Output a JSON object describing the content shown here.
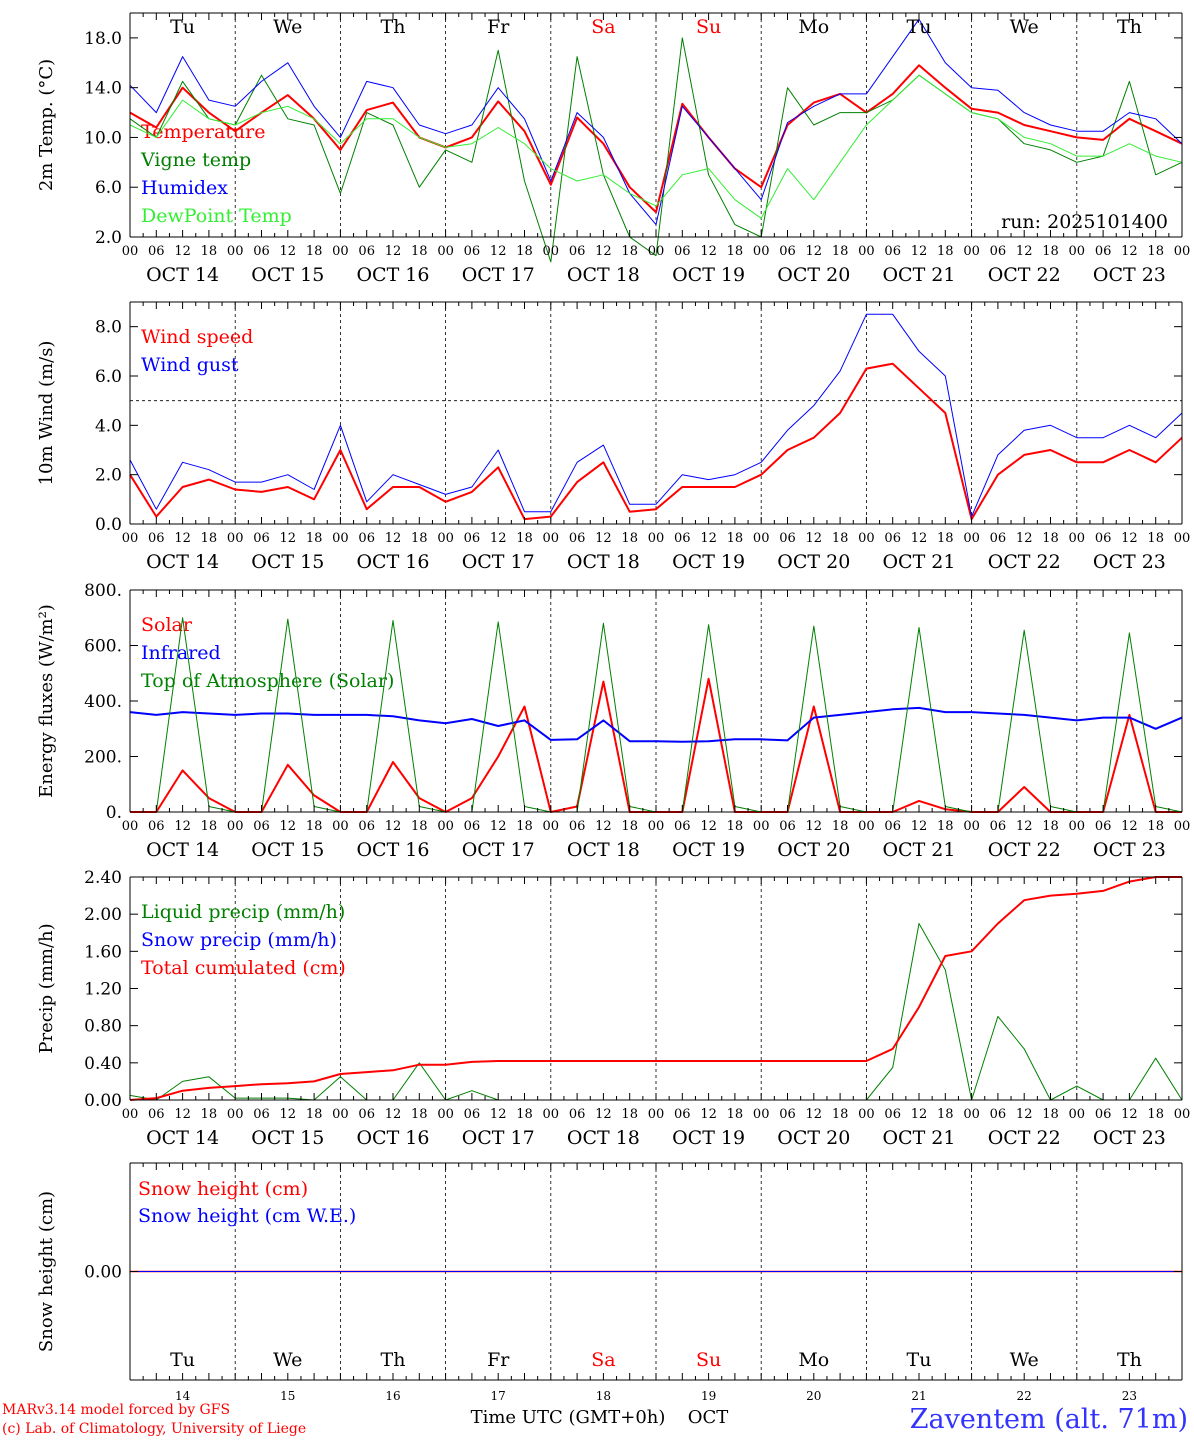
{
  "station": "Zaventem (alt. 71m)",
  "run_label": "run: 2025101400",
  "credits": {
    "model": "MARv3.14 model forced by GFS",
    "lab": "(c) Lab. of Climatology, University of Liege"
  },
  "xlabel": "Time UTC (GMT+0h)",
  "month": "OCT",
  "days": [
    {
      "abbr": "Tu",
      "date": "OCT 14",
      "num": "14",
      "weekend": false
    },
    {
      "abbr": "We",
      "date": "OCT 15",
      "num": "15",
      "weekend": false
    },
    {
      "abbr": "Th",
      "date": "OCT 16",
      "num": "16",
      "weekend": false
    },
    {
      "abbr": "Fr",
      "date": "OCT 17",
      "num": "17",
      "weekend": false
    },
    {
      "abbr": "Sa",
      "date": "OCT 18",
      "num": "18",
      "weekend": true
    },
    {
      "abbr": "Su",
      "date": "OCT 19",
      "num": "19",
      "weekend": true
    },
    {
      "abbr": "Mo",
      "date": "OCT 20",
      "num": "20",
      "weekend": false
    },
    {
      "abbr": "Tu",
      "date": "OCT 21",
      "num": "21",
      "weekend": false
    },
    {
      "abbr": "We",
      "date": "OCT 22",
      "num": "22",
      "weekend": false
    },
    {
      "abbr": "Th",
      "date": "OCT 23",
      "num": "23",
      "weekend": false
    }
  ],
  "hour_ticks": [
    "00",
    "06",
    "12",
    "18"
  ],
  "end_tick": "00",
  "colors": {
    "red": "#ff0000",
    "green": "#008000",
    "blue": "#0000ff",
    "lightgreen": "#33ee33",
    "weekend": "#ff0000"
  },
  "chart_data": [
    {
      "id": "temp",
      "type": "line",
      "ylabel": "2m Temp. (°C)",
      "ylim": [
        2,
        20
      ],
      "yticks": [
        2,
        6,
        10,
        14,
        18
      ],
      "ytick_labels": [
        "2.0",
        "6.0",
        "10.0",
        "14.0",
        "18.0"
      ],
      "x_unit": "hours since 2025-10-14 00 UTC",
      "x": [
        0,
        6,
        12,
        18,
        24,
        30,
        36,
        42,
        48,
        54,
        60,
        66,
        72,
        78,
        84,
        90,
        96,
        102,
        108,
        114,
        120,
        126,
        132,
        138,
        144,
        150,
        156,
        162,
        168,
        174,
        180,
        186,
        192,
        198,
        204,
        210,
        216,
        222,
        228,
        234,
        240
      ],
      "series": [
        {
          "name": "Temperature",
          "color": "red",
          "width": 2,
          "values": [
            12.0,
            10.8,
            14.0,
            12.0,
            10.5,
            12.0,
            13.4,
            11.5,
            9.0,
            12.2,
            12.8,
            10.0,
            9.2,
            10.0,
            12.9,
            10.5,
            6.2,
            11.6,
            9.5,
            6.0,
            4.0,
            12.7,
            10.0,
            7.5,
            6.0,
            11.0,
            12.8,
            13.5,
            12.0,
            13.5,
            15.8,
            14.0,
            12.3,
            12.0,
            11.0,
            10.5,
            10.0,
            9.8,
            11.5,
            10.5,
            9.5
          ]
        },
        {
          "name": "Vigne temp",
          "color": "green",
          "width": 1,
          "values": [
            11.5,
            10.0,
            14.5,
            11.5,
            11.0,
            15.0,
            11.5,
            11.0,
            5.5,
            12.0,
            11.0,
            6.0,
            9.0,
            8.0,
            17.0,
            6.5,
            0.0,
            16.5,
            7.0,
            2.0,
            0.5,
            18.0,
            7.0,
            3.0,
            2.0,
            14.0,
            11.0,
            12.0,
            12.0,
            13.0,
            15.0,
            13.5,
            12.0,
            11.5,
            9.5,
            9.0,
            8.0,
            8.5,
            14.5,
            7.0,
            8.0
          ]
        },
        {
          "name": "Humidex",
          "color": "blue",
          "width": 1,
          "values": [
            14.2,
            12.0,
            16.5,
            13.0,
            12.5,
            14.5,
            16.0,
            12.5,
            10.0,
            14.5,
            14.0,
            11.0,
            10.3,
            11.0,
            14.0,
            11.5,
            6.5,
            12.0,
            10.0,
            5.5,
            3.0,
            12.5,
            10.0,
            7.5,
            5.0,
            11.2,
            12.5,
            13.5,
            13.5,
            16.5,
            19.5,
            16.0,
            14.0,
            13.8,
            12.0,
            11.0,
            10.5,
            10.5,
            12.0,
            11.5,
            9.5
          ]
        },
        {
          "name": "DewPoint Temp",
          "color": "lightgreen",
          "width": 1,
          "values": [
            11.0,
            10.0,
            13.0,
            11.5,
            11.0,
            12.0,
            12.5,
            11.5,
            9.5,
            11.5,
            11.5,
            10.0,
            9.2,
            9.5,
            10.8,
            9.5,
            7.5,
            6.5,
            7.0,
            5.5,
            4.5,
            7.0,
            7.5,
            5.0,
            3.5,
            7.5,
            5.0,
            8.0,
            11.0,
            13.0,
            15.0,
            13.5,
            12.0,
            11.5,
            10.0,
            9.5,
            8.5,
            8.5,
            9.5,
            8.5,
            8.0
          ]
        }
      ]
    },
    {
      "id": "wind",
      "type": "line",
      "ylabel": "10m Wind (m/s)",
      "ylim": [
        0,
        9
      ],
      "yticks": [
        0,
        2,
        4,
        6,
        8
      ],
      "ytick_labels": [
        "0.0",
        "2.0",
        "4.0",
        "6.0",
        "8.0"
      ],
      "ref_line": 5,
      "x": [
        0,
        6,
        12,
        18,
        24,
        30,
        36,
        42,
        48,
        54,
        60,
        66,
        72,
        78,
        84,
        90,
        96,
        102,
        108,
        114,
        120,
        126,
        132,
        138,
        144,
        150,
        156,
        162,
        168,
        174,
        180,
        186,
        192,
        198,
        204,
        210,
        216,
        222,
        228,
        234,
        240
      ],
      "series": [
        {
          "name": "Wind speed",
          "color": "red",
          "width": 2,
          "values": [
            2.0,
            0.3,
            1.5,
            1.8,
            1.4,
            1.3,
            1.5,
            1.0,
            3.0,
            0.6,
            1.5,
            1.5,
            0.9,
            1.3,
            2.3,
            0.2,
            0.3,
            1.7,
            2.5,
            0.5,
            0.6,
            1.5,
            1.5,
            1.5,
            2.0,
            3.0,
            3.5,
            4.5,
            6.3,
            6.5,
            5.5,
            4.5,
            0.2,
            2.0,
            2.8,
            3.0,
            2.5,
            2.5,
            3.0,
            2.5,
            3.5
          ]
        },
        {
          "name": "Wind gust",
          "color": "blue",
          "width": 1,
          "values": [
            2.6,
            0.6,
            2.5,
            2.2,
            1.7,
            1.7,
            2.0,
            1.4,
            4.0,
            0.9,
            2.0,
            1.6,
            1.2,
            1.5,
            3.0,
            0.5,
            0.5,
            2.5,
            3.2,
            0.8,
            0.8,
            2.0,
            1.8,
            2.0,
            2.5,
            3.8,
            4.8,
            6.2,
            8.5,
            8.5,
            7.0,
            6.0,
            0.3,
            2.8,
            3.8,
            4.0,
            3.5,
            3.5,
            4.0,
            3.5,
            4.5
          ]
        }
      ]
    },
    {
      "id": "flux",
      "type": "line",
      "ylabel": "Energy fluxes (W/m²)",
      "ylim": [
        0,
        800
      ],
      "yticks": [
        0,
        200,
        400,
        600,
        800
      ],
      "ytick_labels": [
        "0.",
        "200.",
        "400.",
        "600.",
        "800."
      ],
      "x": [
        0,
        6,
        12,
        18,
        24,
        30,
        36,
        42,
        48,
        54,
        60,
        66,
        72,
        78,
        84,
        90,
        96,
        102,
        108,
        114,
        120,
        126,
        132,
        138,
        144,
        150,
        156,
        162,
        168,
        174,
        180,
        186,
        192,
        198,
        204,
        210,
        216,
        222,
        228,
        234,
        240
      ],
      "series": [
        {
          "name": "Solar",
          "color": "red",
          "width": 2,
          "values": [
            0,
            0,
            150,
            50,
            0,
            0,
            170,
            60,
            0,
            0,
            180,
            50,
            0,
            50,
            200,
            380,
            0,
            20,
            470,
            0,
            0,
            0,
            480,
            0,
            0,
            0,
            380,
            0,
            0,
            0,
            40,
            10,
            0,
            0,
            90,
            0,
            0,
            0,
            350,
            0,
            0
          ]
        },
        {
          "name": "Infrared",
          "color": "blue",
          "width": 2,
          "values": [
            360,
            350,
            360,
            355,
            350,
            355,
            355,
            350,
            350,
            350,
            345,
            330,
            320,
            335,
            310,
            330,
            260,
            262,
            330,
            255,
            255,
            253,
            255,
            262,
            262,
            258,
            340,
            350,
            360,
            370,
            375,
            360,
            360,
            355,
            350,
            340,
            330,
            340,
            340,
            300,
            340
          ]
        },
        {
          "name": "Top of Atmosphere (Solar)",
          "color": "green",
          "width": 1,
          "values": [
            0,
            0,
            700,
            20,
            0,
            0,
            695,
            20,
            0,
            0,
            690,
            20,
            0,
            0,
            685,
            20,
            0,
            0,
            680,
            20,
            0,
            0,
            675,
            20,
            0,
            0,
            670,
            20,
            0,
            0,
            665,
            20,
            0,
            0,
            655,
            20,
            0,
            0,
            645,
            20,
            0
          ]
        }
      ]
    },
    {
      "id": "precip",
      "type": "line",
      "ylabel": "Precip (mm/h)",
      "ylim": [
        0,
        2.4
      ],
      "yticks": [
        0,
        0.4,
        0.8,
        1.2,
        1.6,
        2.0,
        2.4
      ],
      "ytick_labels": [
        "0.00",
        "0.40",
        "0.80",
        "1.20",
        "1.60",
        "2.00",
        "2.40"
      ],
      "x": [
        0,
        6,
        12,
        18,
        24,
        30,
        36,
        42,
        48,
        54,
        60,
        66,
        72,
        78,
        84,
        90,
        96,
        102,
        108,
        114,
        120,
        126,
        132,
        138,
        144,
        150,
        156,
        162,
        168,
        174,
        180,
        186,
        192,
        198,
        204,
        210,
        216,
        222,
        228,
        234,
        240
      ],
      "series": [
        {
          "name": "Liquid precip (mm/h)",
          "color": "green",
          "width": 1,
          "values": [
            0.05,
            0.0,
            0.2,
            0.25,
            0.02,
            0.02,
            0.02,
            0.0,
            0.25,
            0.0,
            0.0,
            0.4,
            0.0,
            0.1,
            0.0,
            0.0,
            0.0,
            0.0,
            0.0,
            0.0,
            0.0,
            0.0,
            0.0,
            0.0,
            0.0,
            0.0,
            0.0,
            0.0,
            0.0,
            0.35,
            1.9,
            1.4,
            0.0,
            0.9,
            0.55,
            0.0,
            0.15,
            0.0,
            0.0,
            0.45,
            0.0
          ]
        },
        {
          "name": "Snow precip (mm/h)",
          "color": "blue",
          "width": 1,
          "values": [
            0,
            0,
            0,
            0,
            0,
            0,
            0,
            0,
            0,
            0,
            0,
            0,
            0,
            0,
            0,
            0,
            0,
            0,
            0,
            0,
            0,
            0,
            0,
            0,
            0,
            0,
            0,
            0,
            0,
            0,
            0,
            0,
            0,
            0,
            0,
            0,
            0,
            0,
            0,
            0,
            0
          ]
        },
        {
          "name": "Total cumulated (cm)",
          "color": "red",
          "width": 2,
          "values": [
            0.0,
            0.02,
            0.1,
            0.13,
            0.15,
            0.17,
            0.18,
            0.2,
            0.28,
            0.3,
            0.32,
            0.38,
            0.38,
            0.41,
            0.42,
            0.42,
            0.42,
            0.42,
            0.42,
            0.42,
            0.42,
            0.42,
            0.42,
            0.42,
            0.42,
            0.42,
            0.42,
            0.42,
            0.42,
            0.55,
            1.0,
            1.55,
            1.6,
            1.9,
            2.15,
            2.2,
            2.22,
            2.25,
            2.35,
            2.4,
            2.4
          ]
        }
      ]
    },
    {
      "id": "snow",
      "type": "line",
      "ylabel": "Snow height (cm)",
      "ylim": [
        -1,
        1
      ],
      "yticks": [
        0
      ],
      "ytick_labels": [
        "0.00"
      ],
      "x": [
        0,
        240
      ],
      "series": [
        {
          "name": "Snow height (cm)",
          "color": "red",
          "width": 1.5,
          "values": [
            0,
            0
          ]
        },
        {
          "name": "Snow height (cm W.E.)",
          "color": "blue",
          "width": 1,
          "values": [
            0,
            0
          ]
        }
      ]
    }
  ]
}
